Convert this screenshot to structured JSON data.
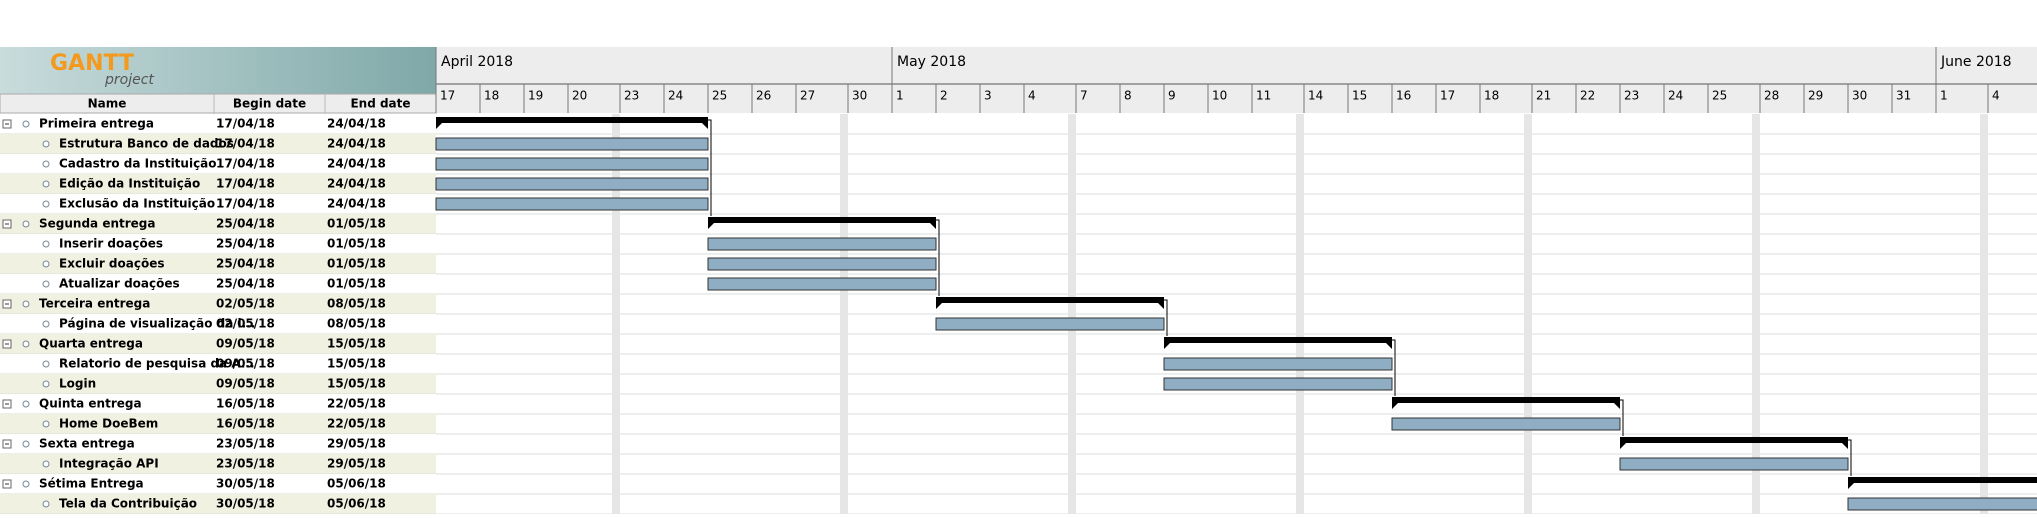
{
  "logo": {
    "title": "GANTT",
    "subtitle": "project"
  },
  "table": {
    "columns": [
      "Name",
      "Begin date",
      "End date"
    ],
    "rows": [
      {
        "type": "group",
        "name": "Primeira entrega",
        "begin": "17/04/18",
        "end": "24/04/18"
      },
      {
        "type": "task",
        "name": "Estrutura Banco de dados",
        "begin": "17/04/18",
        "end": "24/04/18"
      },
      {
        "type": "task",
        "name": "Cadastro da Instituição",
        "begin": "17/04/18",
        "end": "24/04/18"
      },
      {
        "type": "task",
        "name": "Edição da Instituição",
        "begin": "17/04/18",
        "end": "24/04/18"
      },
      {
        "type": "task",
        "name": "Exclusão da Instituição",
        "begin": "17/04/18",
        "end": "24/04/18"
      },
      {
        "type": "group",
        "name": "Segunda entrega",
        "begin": "25/04/18",
        "end": "01/05/18"
      },
      {
        "type": "task",
        "name": "Inserir doações",
        "begin": "25/04/18",
        "end": "01/05/18"
      },
      {
        "type": "task",
        "name": "Excluir doações",
        "begin": "25/04/18",
        "end": "01/05/18"
      },
      {
        "type": "task",
        "name": "Atualizar doações",
        "begin": "25/04/18",
        "end": "01/05/18"
      },
      {
        "type": "group",
        "name": "Terceira entrega",
        "begin": "02/05/18",
        "end": "08/05/18"
      },
      {
        "type": "task",
        "name": "Página de visualização da i...",
        "begin": "02/05/18",
        "end": "08/05/18"
      },
      {
        "type": "group",
        "name": "Quarta entrega",
        "begin": "09/05/18",
        "end": "15/05/18"
      },
      {
        "type": "task",
        "name": "Relatorio de pesquisa da A...",
        "begin": "09/05/18",
        "end": "15/05/18"
      },
      {
        "type": "task",
        "name": "Login",
        "begin": "09/05/18",
        "end": "15/05/18"
      },
      {
        "type": "group",
        "name": "Quinta entrega",
        "begin": "16/05/18",
        "end": "22/05/18"
      },
      {
        "type": "task",
        "name": "Home DoeBem",
        "begin": "16/05/18",
        "end": "22/05/18"
      },
      {
        "type": "group",
        "name": "Sexta entrega",
        "begin": "23/05/18",
        "end": "29/05/18"
      },
      {
        "type": "task",
        "name": "Integração API",
        "begin": "23/05/18",
        "end": "29/05/18"
      },
      {
        "type": "group",
        "name": "Sétima Entrega",
        "begin": "30/05/18",
        "end": "05/06/18"
      },
      {
        "type": "task",
        "name": "Tela da Contribuição",
        "begin": "30/05/18",
        "end": "05/06/18"
      }
    ]
  },
  "timeline": {
    "months": [
      "April 2018",
      "May 2018",
      "June 2018"
    ],
    "days": [
      "17",
      "18",
      "19",
      "20",
      "23",
      "24",
      "25",
      "26",
      "27",
      "30",
      "1",
      "2",
      "3",
      "4",
      "7",
      "8",
      "9",
      "10",
      "11",
      "14",
      "15",
      "16",
      "17",
      "18",
      "21",
      "22",
      "23",
      "24",
      "25",
      "28",
      "29",
      "30",
      "31",
      "1",
      "4"
    ]
  }
}
